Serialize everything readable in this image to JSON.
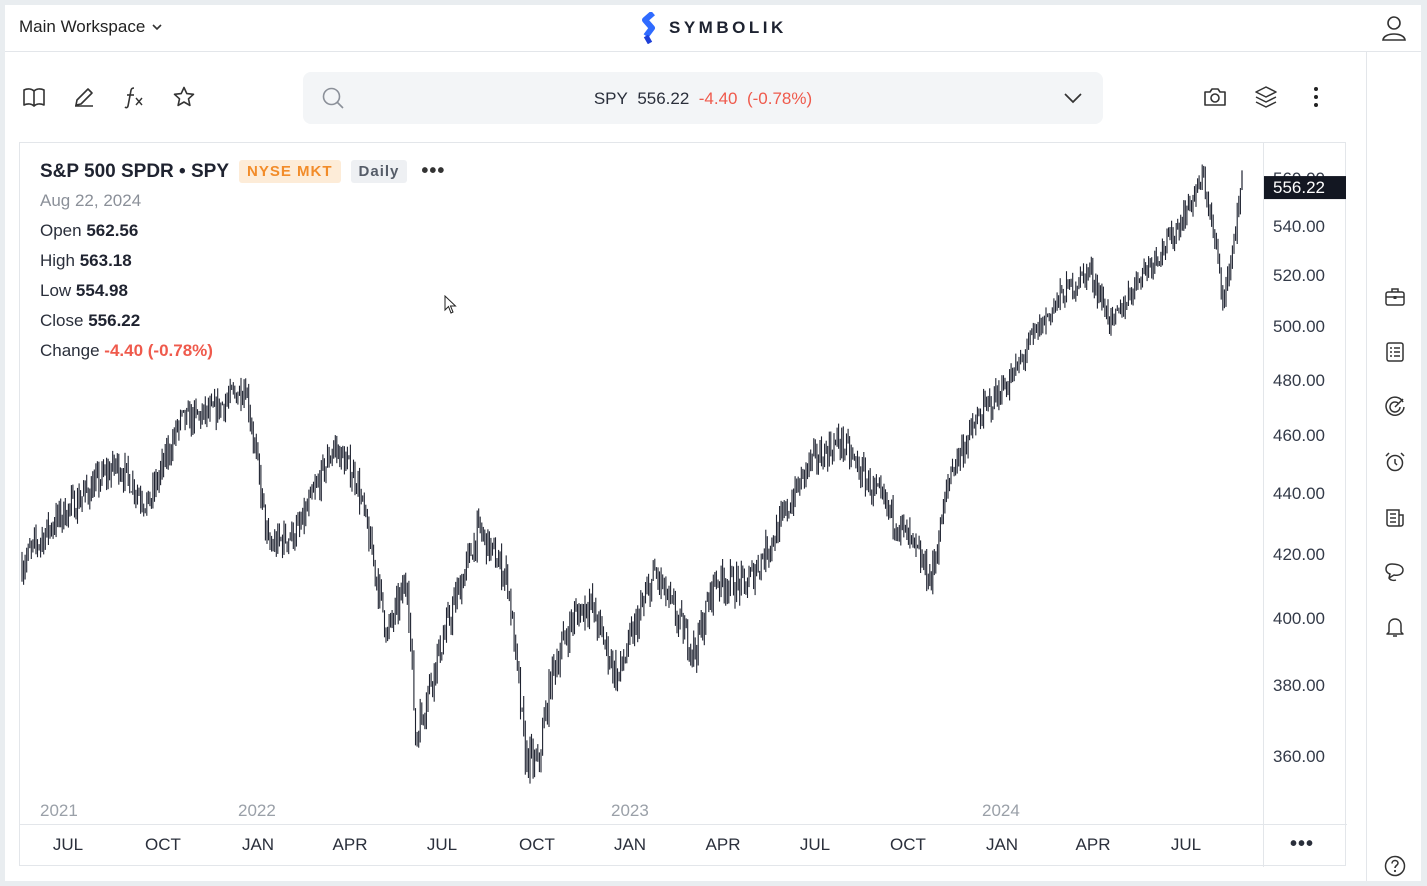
{
  "header": {
    "workspace": "Main Workspace",
    "brand": "SYMBOLIK"
  },
  "search": {
    "symbol": "SPY",
    "price": "556.22",
    "change": "-4.40",
    "change_pct": "(-0.78%)"
  },
  "legend": {
    "title": "S&P 500 SPDR • SPY",
    "exchange": "NYSE MKT",
    "interval": "Daily",
    "more": "•••",
    "date": "Aug 22, 2024",
    "open_label": "Open",
    "open": "562.56",
    "high_label": "High",
    "high": "563.18",
    "low_label": "Low",
    "low": "554.98",
    "close_label": "Close",
    "close": "556.22",
    "change_label": "Change",
    "change": "-4.40 (-0.78%)"
  },
  "axis_more": "•••",
  "colors": {
    "bars": "#1e2230",
    "negative": "#ef5a4c",
    "exchange_badge": "#f28c2a",
    "brand": "#2f6bff",
    "price_tag": "#131722"
  },
  "chart_data": {
    "type": "line",
    "style": "ohlc-bars",
    "title": "S&P 500 SPDR • SPY",
    "current_price": 556.22,
    "y_ticks": [
      360,
      380,
      400,
      420,
      440,
      460,
      480,
      500,
      520,
      540,
      560
    ],
    "y_tick_labels": [
      "360.00",
      "380.00",
      "400.00",
      "420.00",
      "440.00",
      "460.00",
      "480.00",
      "500.00",
      "520.00",
      "540.00",
      "560.00"
    ],
    "x_tick_labels": [
      "JUL",
      "OCT",
      "JAN",
      "APR",
      "JUL",
      "OCT",
      "JAN",
      "APR",
      "JUL",
      "OCT",
      "JAN",
      "APR",
      "JUL"
    ],
    "year_labels": [
      "2021",
      "2022",
      "2023",
      "2024"
    ],
    "grid": false,
    "series": [
      {
        "x": [
          "2021-06-01",
          "2021-07-01",
          "2021-08-01",
          "2021-09-01",
          "2021-10-01",
          "2021-11-01",
          "2021-12-01",
          "2022-01-03",
          "2022-01-25",
          "2022-02-24",
          "2022-03-29",
          "2022-04-20",
          "2022-05-20",
          "2022-06-08",
          "2022-06-16",
          "2022-07-01",
          "2022-08-16",
          "2022-09-13",
          "2022-09-30",
          "2022-10-12",
          "2022-10-26",
          "2022-11-15",
          "2022-12-01",
          "2022-12-28",
          "2023-01-15",
          "2023-02-02",
          "2023-02-28",
          "2023-03-13",
          "2023-04-01",
          "2023-05-01",
          "2023-06-01",
          "2023-07-01",
          "2023-07-31",
          "2023-09-01",
          "2023-09-29",
          "2023-10-27",
          "2023-11-15",
          "2023-12-15",
          "2024-01-15",
          "2024-02-01",
          "2024-03-01",
          "2024-03-28",
          "2024-04-19",
          "2024-05-15",
          "2024-06-15",
          "2024-07-16",
          "2024-08-05",
          "2024-08-22"
        ],
        "close": [
          417,
          430,
          440,
          450,
          436,
          465,
          468,
          478,
          422,
          428,
          456,
          445,
          395,
          412,
          365,
          382,
          428,
          412,
          360,
          357,
          384,
          400,
          405,
          382,
          398,
          414,
          397,
          390,
          412,
          410,
          428,
          450,
          458,
          441,
          428,
          412,
          448,
          468,
          482,
          495,
          512,
          522,
          500,
          520,
          535,
          560,
          510,
          556
        ]
      }
    ]
  }
}
